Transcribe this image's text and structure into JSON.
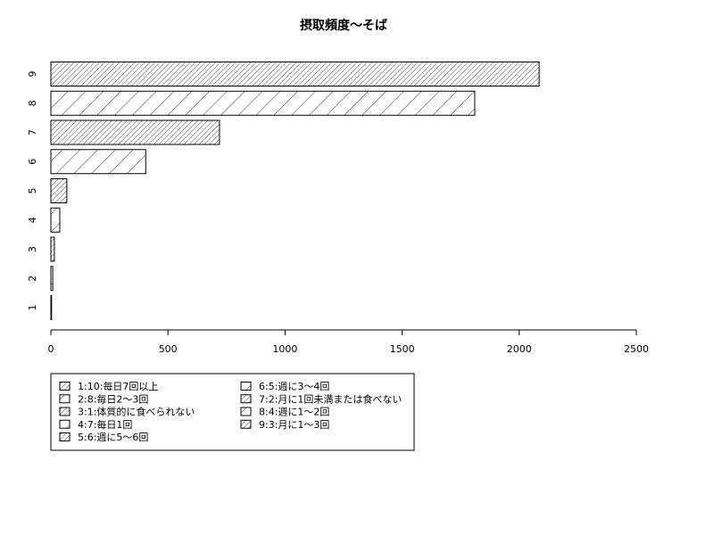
{
  "chart_data": {
    "type": "bar",
    "orientation": "horizontal",
    "title": "摂取頻度〜そば",
    "xlabel": "",
    "ylabel": "",
    "xlim": [
      0,
      2500
    ],
    "x_ticks": [
      "0",
      "500",
      "1000",
      "1500",
      "2000",
      "2500"
    ],
    "categories": [
      "1",
      "2",
      "3",
      "4",
      "5",
      "6",
      "7",
      "8",
      "9"
    ],
    "values": [
      3,
      8,
      15,
      38,
      68,
      405,
      720,
      1810,
      2085
    ],
    "grid": false,
    "legend_position": "bottom-left",
    "legend": [
      "1:10:毎日7回以上",
      "2:8:毎日2〜3回",
      "3:1:体質的に食べられない",
      "4:7:毎日1回",
      "5:6:週に5〜6回",
      "6:5:週に3〜4回",
      "7:2:月に1回未満または食べない",
      "8:4:週に1〜2回",
      "9:3:月に1〜3回"
    ]
  }
}
